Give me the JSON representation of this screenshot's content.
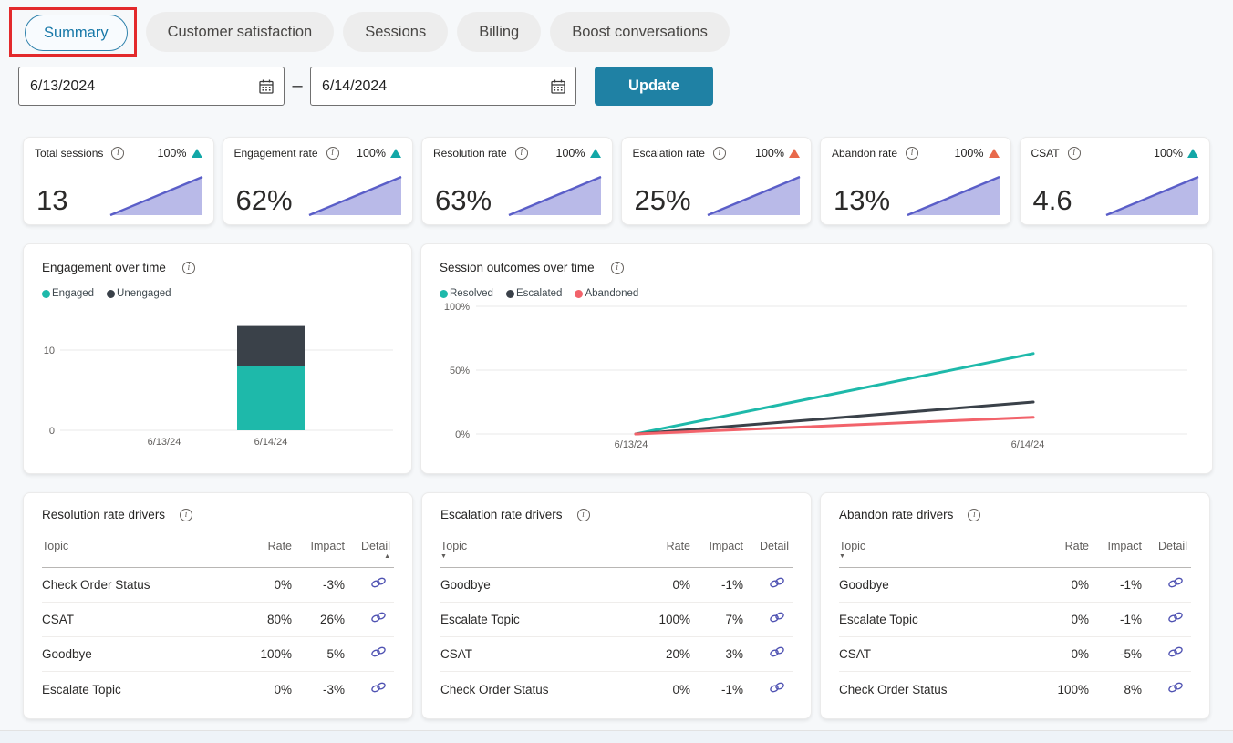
{
  "tabs": {
    "items": [
      {
        "label": "Summary",
        "selected": true,
        "annotated": true
      },
      {
        "label": "Customer satisfaction",
        "selected": false
      },
      {
        "label": "Sessions",
        "selected": false
      },
      {
        "label": "Billing",
        "selected": false
      },
      {
        "label": "Boost conversations",
        "selected": false
      }
    ],
    "annotation_color": "#e3292b"
  },
  "date_filter": {
    "start_value": "6/13/2024",
    "end_value": "6/14/2024",
    "separator": "–",
    "update_label": "Update"
  },
  "kpis": [
    {
      "label": "Total sessions",
      "value": "13",
      "change": "100%",
      "trend": "up",
      "trend_color": "#12a7a7"
    },
    {
      "label": "Engagement rate",
      "value": "62%",
      "change": "100%",
      "trend": "up",
      "trend_color": "#12a7a7"
    },
    {
      "label": "Resolution rate",
      "value": "63%",
      "change": "100%",
      "trend": "up",
      "trend_color": "#12a7a7"
    },
    {
      "label": "Escalation rate",
      "value": "25%",
      "change": "100%",
      "trend": "up",
      "trend_color": "#e8694b"
    },
    {
      "label": "Abandon rate",
      "value": "13%",
      "change": "100%",
      "trend": "up",
      "trend_color": "#e8694b"
    },
    {
      "label": "CSAT",
      "value": "4.6",
      "change": "100%",
      "trend": "up",
      "trend_color": "#12a7a7"
    }
  ],
  "sparkline_colors": {
    "line": "#5a5ec8",
    "fill": "#b9bae8"
  },
  "chart_data": [
    {
      "type": "bar",
      "title": "Engagement over time",
      "categories": [
        "6/13/24",
        "6/14/24"
      ],
      "series": [
        {
          "name": "Engaged",
          "values": [
            0,
            8
          ],
          "color": "#1eb9aa"
        },
        {
          "name": "Unengaged",
          "values": [
            0,
            5
          ],
          "color": "#3a4149"
        }
      ],
      "stacked": true,
      "y_ticks": [
        0,
        10
      ],
      "ylim": [
        0,
        13.6
      ],
      "legend_position": "top"
    },
    {
      "type": "line",
      "title": "Session outcomes over time",
      "categories": [
        "6/13/24",
        "6/14/24"
      ],
      "series": [
        {
          "name": "Resolved",
          "values": [
            0,
            63
          ],
          "color": "#1eb9aa"
        },
        {
          "name": "Escalated",
          "values": [
            0,
            25
          ],
          "color": "#3a4149"
        },
        {
          "name": "Abandoned",
          "values": [
            0,
            13
          ],
          "color": "#f2636b"
        }
      ],
      "y_ticks": [
        "100%",
        "50%",
        "0%"
      ],
      "ylim": [
        0,
        100
      ],
      "legend_position": "top"
    }
  ],
  "drivers": [
    {
      "title": "Resolution rate drivers",
      "columns": [
        "Topic",
        "Rate",
        "Impact",
        "Detail"
      ],
      "sort_column": "Detail",
      "sort_direction": "asc",
      "rows": [
        {
          "topic": "Check Order Status",
          "rate": "0%",
          "impact": "-3%"
        },
        {
          "topic": "CSAT",
          "rate": "80%",
          "impact": "26%"
        },
        {
          "topic": "Goodbye",
          "rate": "100%",
          "impact": "5%"
        },
        {
          "topic": "Escalate Topic",
          "rate": "0%",
          "impact": "-3%"
        }
      ]
    },
    {
      "title": "Escalation rate drivers",
      "columns": [
        "Topic",
        "Rate",
        "Impact",
        "Detail"
      ],
      "sort_column": "Topic",
      "sort_direction": "desc",
      "rows": [
        {
          "topic": "Goodbye",
          "rate": "0%",
          "impact": "-1%"
        },
        {
          "topic": "Escalate Topic",
          "rate": "100%",
          "impact": "7%"
        },
        {
          "topic": "CSAT",
          "rate": "20%",
          "impact": "3%"
        },
        {
          "topic": "Check Order Status",
          "rate": "0%",
          "impact": "-1%"
        }
      ]
    },
    {
      "title": "Abandon rate drivers",
      "columns": [
        "Topic",
        "Rate",
        "Impact",
        "Detail"
      ],
      "sort_column": "Topic",
      "sort_direction": "desc",
      "rows": [
        {
          "topic": "Goodbye",
          "rate": "0%",
          "impact": "-1%"
        },
        {
          "topic": "Escalate Topic",
          "rate": "0%",
          "impact": "-1%"
        },
        {
          "topic": "CSAT",
          "rate": "0%",
          "impact": "-5%"
        },
        {
          "topic": "Check Order Status",
          "rate": "100%",
          "impact": "8%"
        }
      ]
    }
  ],
  "icon_colors": {
    "link": "#4f52b2",
    "calendar": "#3b3b3b"
  }
}
